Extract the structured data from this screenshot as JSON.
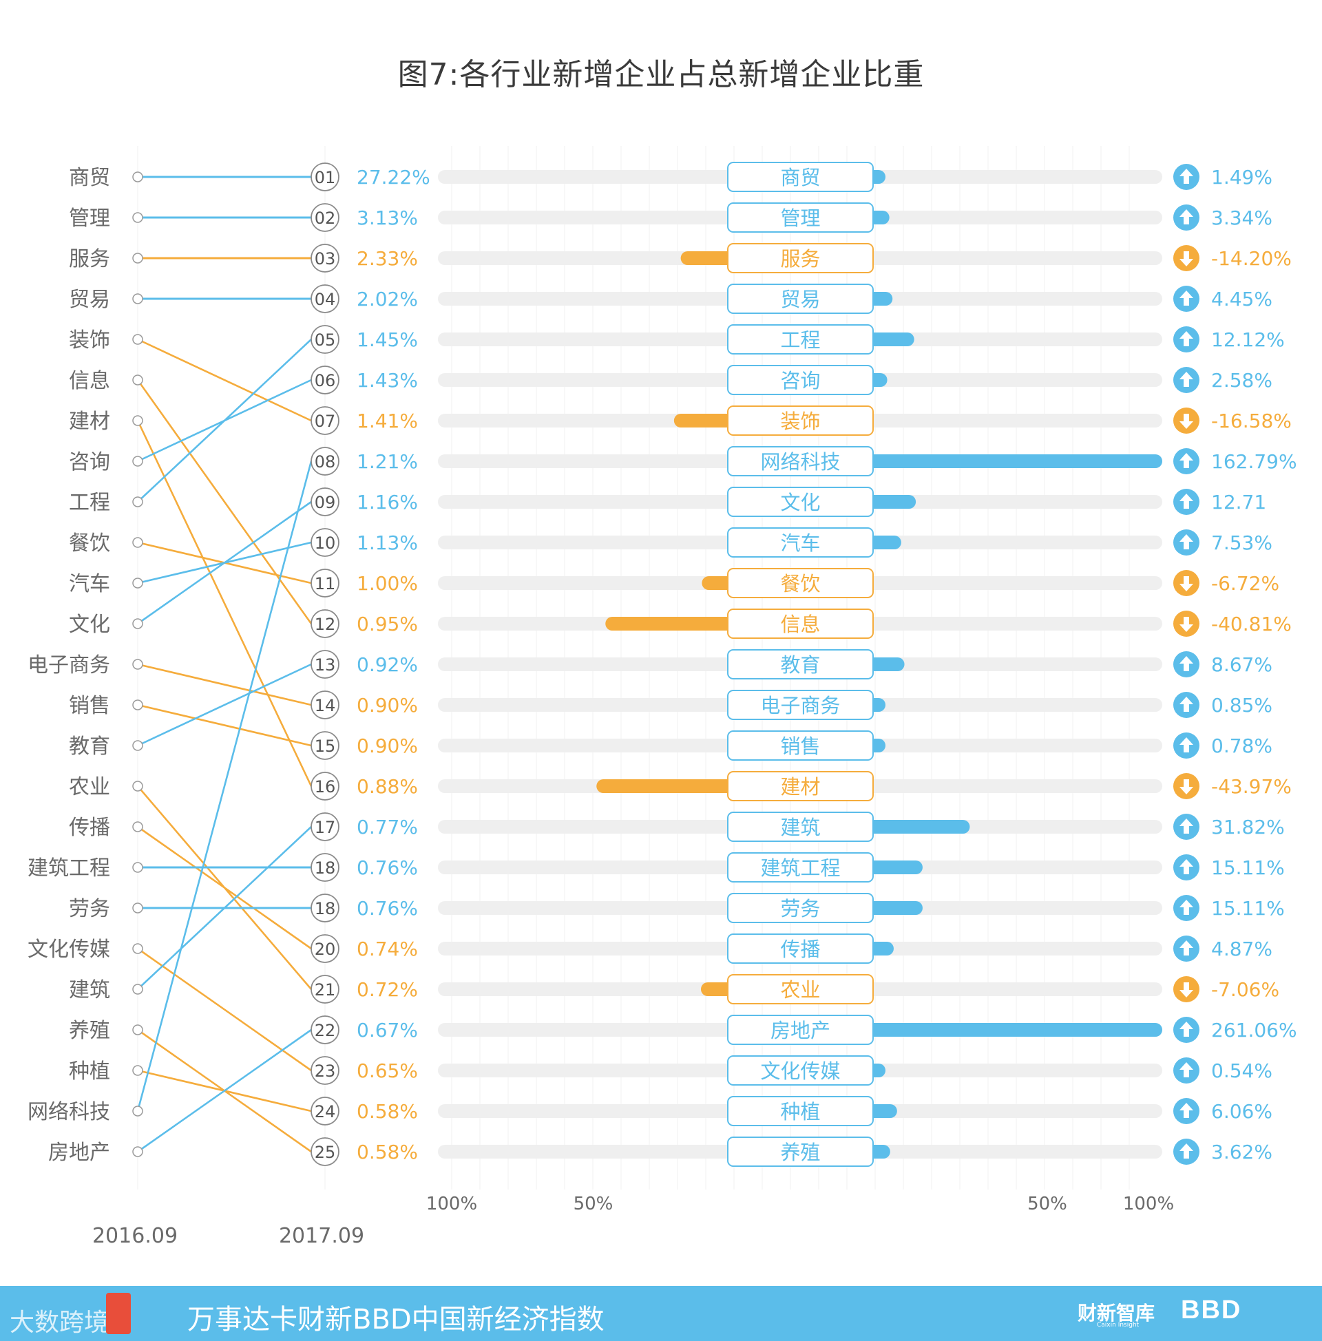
{
  "title": "图7:各行业新增企业占总新增企业比重",
  "colors": {
    "up": "#5bbdea",
    "down": "#f5ac3c",
    "track": "#efefef",
    "text": "#6a6a6a",
    "grid": "#f0f0f0",
    "footer": "#5bbdea"
  },
  "chart_data": {
    "type": "slope-and-diverging-bar",
    "period_labels": [
      "2016.09",
      "2017.09"
    ],
    "axis_ticks_left": [
      "100%",
      "50%"
    ],
    "axis_ticks_right": [
      "50%",
      "100%"
    ],
    "left_ranking_2016": [
      "商贸",
      "管理",
      "服务",
      "贸易",
      "装饰",
      "信息",
      "建材",
      "咨询",
      "工程",
      "餐饮",
      "汽车",
      "文化",
      "电子商务",
      "销售",
      "教育",
      "农业",
      "传播",
      "建筑工程",
      "劳务",
      "文化传媒",
      "建筑",
      "养殖",
      "种植",
      "网络科技",
      "房地产"
    ],
    "ranks_2017": [
      {
        "rank": "01",
        "share": "27.22%",
        "industry": "商贸",
        "direction": "up"
      },
      {
        "rank": "02",
        "share": "3.13%",
        "industry": "管理",
        "direction": "up"
      },
      {
        "rank": "03",
        "share": "2.33%",
        "industry": "服务",
        "direction": "down"
      },
      {
        "rank": "04",
        "share": "2.02%",
        "industry": "贸易",
        "direction": "up"
      },
      {
        "rank": "05",
        "share": "1.45%",
        "industry": "工程",
        "direction": "up"
      },
      {
        "rank": "06",
        "share": "1.43%",
        "industry": "咨询",
        "direction": "up"
      },
      {
        "rank": "07",
        "share": "1.41%",
        "industry": "装饰",
        "direction": "down"
      },
      {
        "rank": "08",
        "share": "1.21%",
        "industry": "网络科技",
        "direction": "up"
      },
      {
        "rank": "09",
        "share": "1.16%",
        "industry": "文化",
        "direction": "up"
      },
      {
        "rank": "10",
        "share": "1.13%",
        "industry": "汽车",
        "direction": "up"
      },
      {
        "rank": "11",
        "share": "1.00%",
        "industry": "餐饮",
        "direction": "down"
      },
      {
        "rank": "12",
        "share": "0.95%",
        "industry": "信息",
        "direction": "down"
      },
      {
        "rank": "13",
        "share": "0.92%",
        "industry": "教育",
        "direction": "up"
      },
      {
        "rank": "14",
        "share": "0.90%",
        "industry": "电子商务",
        "direction": "down"
      },
      {
        "rank": "15",
        "share": "0.90%",
        "industry": "销售",
        "direction": "down"
      },
      {
        "rank": "16",
        "share": "0.88%",
        "industry": "建材",
        "direction": "down"
      },
      {
        "rank": "17",
        "share": "0.77%",
        "industry": "建筑",
        "direction": "up"
      },
      {
        "rank": "18",
        "share": "0.76%",
        "industry": "建筑工程",
        "direction": "up"
      },
      {
        "rank": "18",
        "share": "0.76%",
        "industry": "劳务",
        "direction": "up"
      },
      {
        "rank": "20",
        "share": "0.74%",
        "industry": "传播",
        "direction": "down"
      },
      {
        "rank": "21",
        "share": "0.72%",
        "industry": "农业",
        "direction": "down"
      },
      {
        "rank": "22",
        "share": "0.67%",
        "industry": "房地产",
        "direction": "up"
      },
      {
        "rank": "23",
        "share": "0.65%",
        "industry": "文化传媒",
        "direction": "down"
      },
      {
        "rank": "24",
        "share": "0.58%",
        "industry": "种植",
        "direction": "down"
      },
      {
        "rank": "25",
        "share": "0.58%",
        "industry": "养殖",
        "direction": "down"
      }
    ],
    "change": [
      {
        "industry": "商贸",
        "value": 1.49,
        "label": "1.49%"
      },
      {
        "industry": "管理",
        "value": 3.34,
        "label": "3.34%"
      },
      {
        "industry": "服务",
        "value": -14.2,
        "label": "-14.20%"
      },
      {
        "industry": "贸易",
        "value": 4.45,
        "label": "4.45%"
      },
      {
        "industry": "工程",
        "value": 12.12,
        "label": "12.12%"
      },
      {
        "industry": "咨询",
        "value": 2.58,
        "label": "2.58%"
      },
      {
        "industry": "装饰",
        "value": -16.58,
        "label": "-16.58%"
      },
      {
        "industry": "网络科技",
        "value": 162.79,
        "label": "162.79%"
      },
      {
        "industry": "文化",
        "value": 12.71,
        "label": "12.71"
      },
      {
        "industry": "汽车",
        "value": 7.53,
        "label": "7.53%"
      },
      {
        "industry": "餐饮",
        "value": -6.72,
        "label": "-6.72%"
      },
      {
        "industry": "信息",
        "value": -40.81,
        "label": "-40.81%"
      },
      {
        "industry": "教育",
        "value": 8.67,
        "label": "8.67%"
      },
      {
        "industry": "电子商务",
        "value": 0.85,
        "label": "0.85%"
      },
      {
        "industry": "销售",
        "value": 0.78,
        "label": "0.78%"
      },
      {
        "industry": "建材",
        "value": -43.97,
        "label": "-43.97%"
      },
      {
        "industry": "建筑",
        "value": 31.82,
        "label": "31.82%"
      },
      {
        "industry": "建筑工程",
        "value": 15.11,
        "label": "15.11%"
      },
      {
        "industry": "劳务",
        "value": 15.11,
        "label": "15.11%"
      },
      {
        "industry": "传播",
        "value": 4.87,
        "label": "4.87%"
      },
      {
        "industry": "农业",
        "value": -7.06,
        "label": "-7.06%"
      },
      {
        "industry": "房地产",
        "value": 261.06,
        "label": "261.06%"
      },
      {
        "industry": "文化传媒",
        "value": 0.54,
        "label": "0.54%"
      },
      {
        "industry": "种植",
        "value": 6.06,
        "label": "6.06%"
      },
      {
        "industry": "养殖",
        "value": 3.62,
        "label": "3.62%"
      }
    ],
    "bar_cap_percent": 100
  },
  "footer": {
    "watermark": "大数跨境",
    "index_name": "万事达卡财新BBD中国新经济指数",
    "logo_caixin": "财新智库",
    "logo_caixin_sub": "Caixin Insight",
    "logo_bbd": "BBD"
  }
}
